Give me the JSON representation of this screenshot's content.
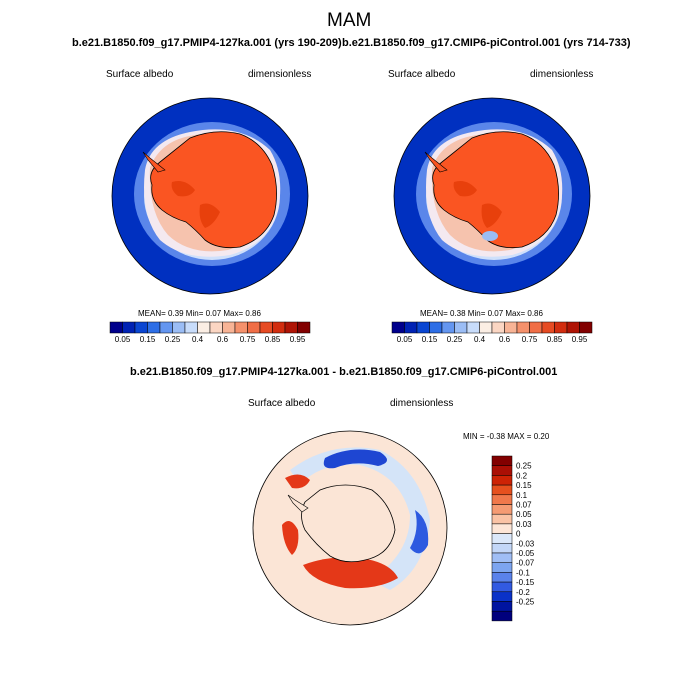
{
  "figure": {
    "season": "MAM",
    "panel1": {
      "case": "b.e21.B1850.f09_g17.PMIP4-127ka.001 (yrs 190-209)",
      "variable": "Surface albedo",
      "units": "dimensionless",
      "stats": "MEAN=   0.39  Min=   0.07  Max=   0.86"
    },
    "panel2": {
      "case": "b.e21.B1850.f09_g17.CMIP6-piControl.001 (yrs 714-733)",
      "variable": "Surface albedo",
      "units": "dimensionless",
      "stats": "MEAN=   0.38  Min=   0.07  Max=   0.86"
    },
    "diff": {
      "title": "b.e21.B1850.f09_g17.PMIP4-127ka.001 - b.e21.B1850.f09_g17.CMIP6-piControl.001",
      "variable": "Surface albedo",
      "units": "dimensionless",
      "stats": "MIN =  -0.38  MAX =   0.20"
    }
  },
  "colorbar_main": {
    "colors": [
      "#00008c",
      "#0022b4",
      "#0a46d2",
      "#2d6ee6",
      "#6496f0",
      "#9bbdf5",
      "#c8dcfa",
      "#fbeee4",
      "#fbd6c3",
      "#f8b496",
      "#f5916c",
      "#f06e46",
      "#e64b23",
      "#d22d0f",
      "#af1405",
      "#820000"
    ],
    "labels": [
      "0.05",
      "0.15",
      "0.25",
      "0.4",
      "0.6",
      "0.75",
      "0.85",
      "0.95"
    ]
  },
  "colorbar_diff": {
    "colors": [
      "#820000",
      "#aa0f05",
      "#cd2305",
      "#e6501e",
      "#f0784b",
      "#f59b73",
      "#fac3a5",
      "#fde6d7",
      "#dbe8fa",
      "#c3d7f8",
      "#a0bef5",
      "#7da5f0",
      "#5a82eb",
      "#325ae1",
      "#0a32c8",
      "#0014a0",
      "#00007d"
    ],
    "labels": [
      "0.25",
      "0.2",
      "0.15",
      "0.1",
      "0.07",
      "0.05",
      "0.03",
      "0",
      "-0.03",
      "-0.05",
      "-0.07",
      "-0.1",
      "-0.15",
      "-0.2",
      "-0.25"
    ]
  },
  "map_colors": {
    "ocean": "#0033c8",
    "ocean_edge": "#4a78e6",
    "seaice": "#f2e6ee",
    "seaice_pink": "#f6c3ae",
    "ice": "#fa5522",
    "ice_dark": "#e8400c",
    "diff_bg": "#fbe5d6",
    "diff_light_blue": "#d4e4f8",
    "diff_blue": "#1e46d2",
    "diff_red": "#e43818"
  }
}
